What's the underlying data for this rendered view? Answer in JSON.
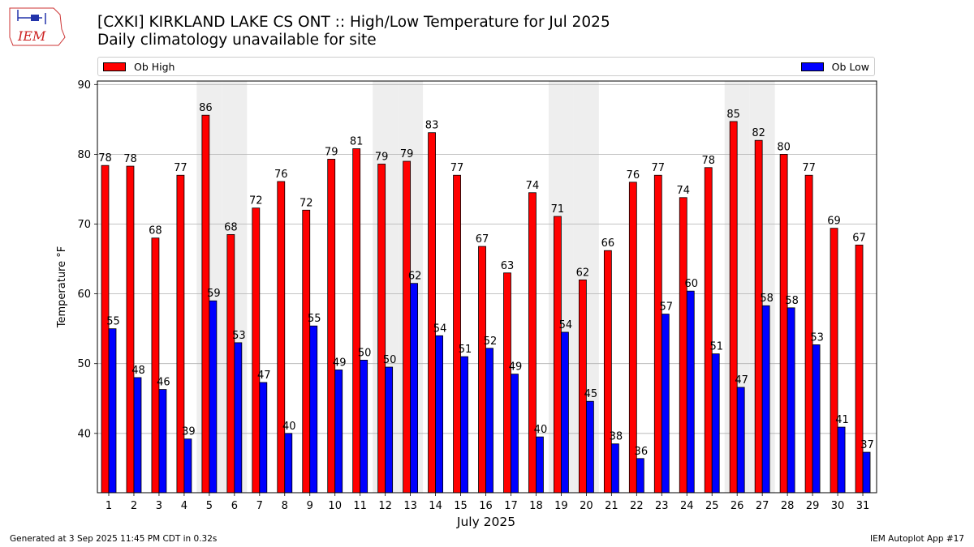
{
  "logo": {
    "text": "IEM"
  },
  "header": {
    "title": "[CXKI] KIRKLAND LAKE CS  ONT :: High/Low Temperature for Jul 2025",
    "subtitle": "Daily climatology unavailable for site"
  },
  "footer": {
    "left": "Generated at 3 Sep 2025 11:45 PM CDT in 0.32s",
    "right": "IEM Autoplot App #17"
  },
  "colors": {
    "high": "#ff0000",
    "low": "#0000ff",
    "weekend_band": "#eeeeee",
    "grid": "#b0b0b0"
  },
  "chart_data": {
    "type": "bar",
    "xlabel": "July 2025",
    "ylabel": "Temperature °F",
    "ylim": [
      31.5,
      90.5
    ],
    "yticks": [
      40,
      50,
      60,
      70,
      80,
      90
    ],
    "grid": true,
    "legend_placement": "top",
    "categories": [
      "1",
      "2",
      "3",
      "4",
      "5",
      "6",
      "7",
      "8",
      "9",
      "10",
      "11",
      "12",
      "13",
      "14",
      "15",
      "16",
      "17",
      "18",
      "19",
      "20",
      "21",
      "22",
      "23",
      "24",
      "25",
      "26",
      "27",
      "28",
      "29",
      "30",
      "31"
    ],
    "shaded_days": [
      5,
      6,
      12,
      13,
      19,
      20,
      26,
      27
    ],
    "series": [
      {
        "name": "Ob High",
        "values": [
          78.4,
          78.3,
          68.0,
          77.0,
          85.6,
          68.5,
          72.3,
          76.1,
          72.0,
          79.3,
          80.8,
          78.6,
          79.0,
          83.1,
          77.0,
          66.8,
          63.0,
          74.5,
          71.1,
          62.0,
          66.2,
          76.0,
          77.0,
          73.8,
          78.1,
          84.7,
          82.0,
          80.0,
          77.0,
          69.4,
          67.0
        ],
        "labels": [
          78,
          78,
          68,
          77,
          86,
          68,
          72,
          76,
          72,
          79,
          81,
          79,
          79,
          83,
          77,
          67,
          63,
          74,
          71,
          62,
          66,
          76,
          77,
          74,
          78,
          85,
          82,
          80,
          77,
          69,
          67
        ]
      },
      {
        "name": "Ob Low",
        "values": [
          55.0,
          48.0,
          46.3,
          39.2,
          59.0,
          53.0,
          47.3,
          40.0,
          55.4,
          49.1,
          50.5,
          49.5,
          61.5,
          54.0,
          51.0,
          52.2,
          48.5,
          39.5,
          54.5,
          44.6,
          38.5,
          36.4,
          57.1,
          60.4,
          51.4,
          46.6,
          58.3,
          58.0,
          52.7,
          40.9,
          37.3
        ],
        "labels": [
          55,
          48,
          46,
          39,
          59,
          53,
          47,
          40,
          55,
          49,
          50,
          50,
          62,
          54,
          51,
          52,
          49,
          40,
          54,
          45,
          38,
          36,
          57,
          60,
          51,
          47,
          58,
          58,
          53,
          41,
          37
        ]
      }
    ]
  }
}
